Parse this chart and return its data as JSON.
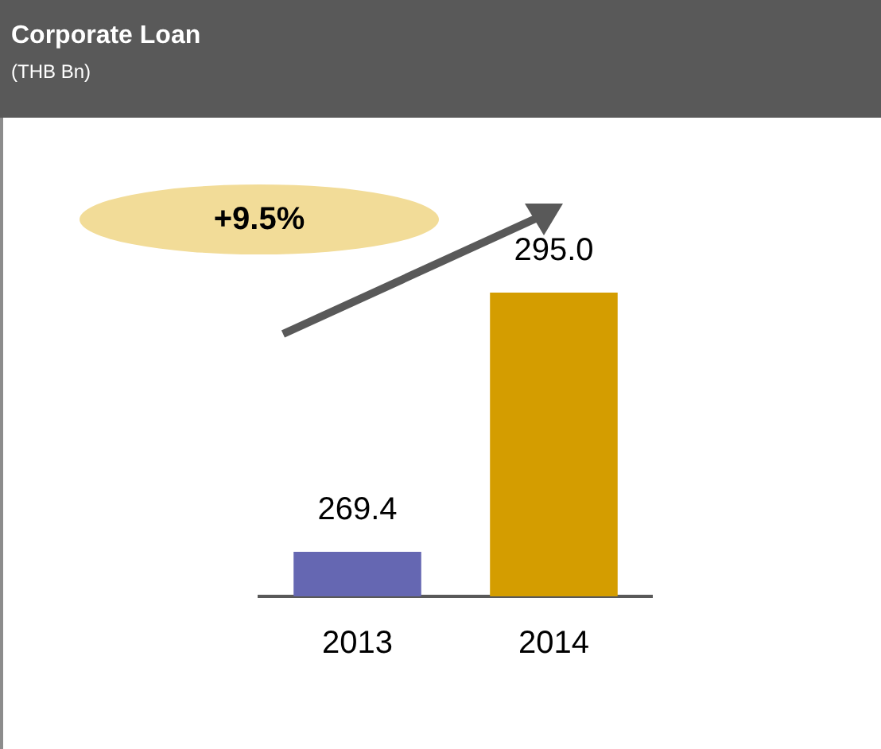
{
  "chart_data": {
    "type": "bar",
    "title": "Corporate Loan",
    "subtitle": "(THB Bn)",
    "categories": [
      "2013",
      "2014"
    ],
    "values": [
      269.4,
      295.0
    ],
    "colors": [
      "#6567b2",
      "#d49d00"
    ],
    "value_labels": [
      "269.4",
      "295.0"
    ],
    "tick_labels": "x",
    "annotations": [
      "+9.5%"
    ]
  }
}
